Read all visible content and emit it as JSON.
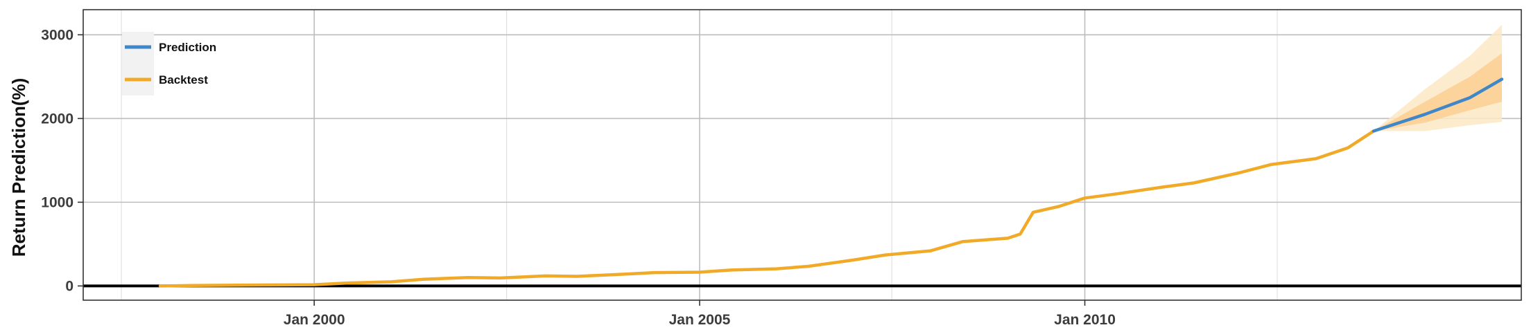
{
  "chart_data": {
    "type": "line",
    "title": "",
    "ylabel": "Return Prediction(%)",
    "xlabel": "",
    "x_range": [
      "1997-01-01",
      "2015-09-01"
    ],
    "ylim": [
      -170,
      3300
    ],
    "grid": true,
    "x_ticks": [
      {
        "date": "2000-01-01",
        "label": "Jan 2000"
      },
      {
        "date": "2005-01-01",
        "label": "Jan 2005"
      },
      {
        "date": "2010-01-01",
        "label": "Jan 2010"
      }
    ],
    "x_minor_gridlines": [
      "1997-07-01",
      "2002-07-01",
      "2007-07-01",
      "2012-07-01"
    ],
    "y_ticks": [
      0,
      1000,
      2000,
      3000
    ],
    "y_tick_labels": [
      "0",
      "1000",
      "2000",
      "3000"
    ],
    "zero_line": 0,
    "legend": {
      "position": "top-left",
      "items": [
        {
          "label": "Prediction",
          "color": "#3f87c8"
        },
        {
          "label": "Backtest",
          "color": "#f0aa28"
        }
      ]
    },
    "series": [
      {
        "name": "Backtest",
        "color": "#f0aa28",
        "points": [
          [
            "1998-01-01",
            0
          ],
          [
            "1998-06-01",
            5
          ],
          [
            "1999-01-01",
            10
          ],
          [
            "1999-06-01",
            12
          ],
          [
            "2000-01-01",
            15
          ],
          [
            "2000-06-01",
            35
          ],
          [
            "2001-01-01",
            50
          ],
          [
            "2001-06-01",
            80
          ],
          [
            "2002-01-01",
            100
          ],
          [
            "2002-06-01",
            95
          ],
          [
            "2003-01-01",
            120
          ],
          [
            "2003-06-01",
            115
          ],
          [
            "2004-01-01",
            140
          ],
          [
            "2004-06-01",
            160
          ],
          [
            "2005-01-01",
            165
          ],
          [
            "2005-06-01",
            190
          ],
          [
            "2006-01-01",
            205
          ],
          [
            "2006-06-01",
            235
          ],
          [
            "2007-01-01",
            310
          ],
          [
            "2007-06-01",
            370
          ],
          [
            "2008-01-01",
            420
          ],
          [
            "2008-06-01",
            530
          ],
          [
            "2009-01-01",
            570
          ],
          [
            "2009-03-01",
            620
          ],
          [
            "2009-05-01",
            880
          ],
          [
            "2009-09-01",
            950
          ],
          [
            "2010-01-01",
            1050
          ],
          [
            "2010-06-01",
            1100
          ],
          [
            "2011-01-01",
            1180
          ],
          [
            "2011-06-01",
            1230
          ],
          [
            "2012-01-01",
            1350
          ],
          [
            "2012-06-01",
            1450
          ],
          [
            "2013-01-01",
            1520
          ],
          [
            "2013-06-01",
            1650
          ],
          [
            "2013-10-01",
            1850
          ]
        ]
      },
      {
        "name": "Prediction",
        "color": "#3f87c8",
        "points": [
          [
            "2013-10-01",
            1850
          ],
          [
            "2014-06-01",
            2050
          ],
          [
            "2015-01-01",
            2250
          ],
          [
            "2015-06-01",
            2470
          ]
        ]
      }
    ],
    "prediction_bands": [
      {
        "level": "outer",
        "color": "#fde8c4",
        "x": [
          "2013-10-01",
          "2014-06-01",
          "2015-01-01",
          "2015-06-01"
        ],
        "lower": [
          1850,
          1850,
          1920,
          1960
        ],
        "upper": [
          1850,
          2350,
          2750,
          3120
        ]
      },
      {
        "level": "inner",
        "color": "#fbcf90",
        "x": [
          "2013-10-01",
          "2014-06-01",
          "2015-01-01",
          "2015-06-01"
        ],
        "lower": [
          1850,
          1950,
          2100,
          2200
        ],
        "upper": [
          1850,
          2200,
          2500,
          2780
        ]
      }
    ]
  }
}
